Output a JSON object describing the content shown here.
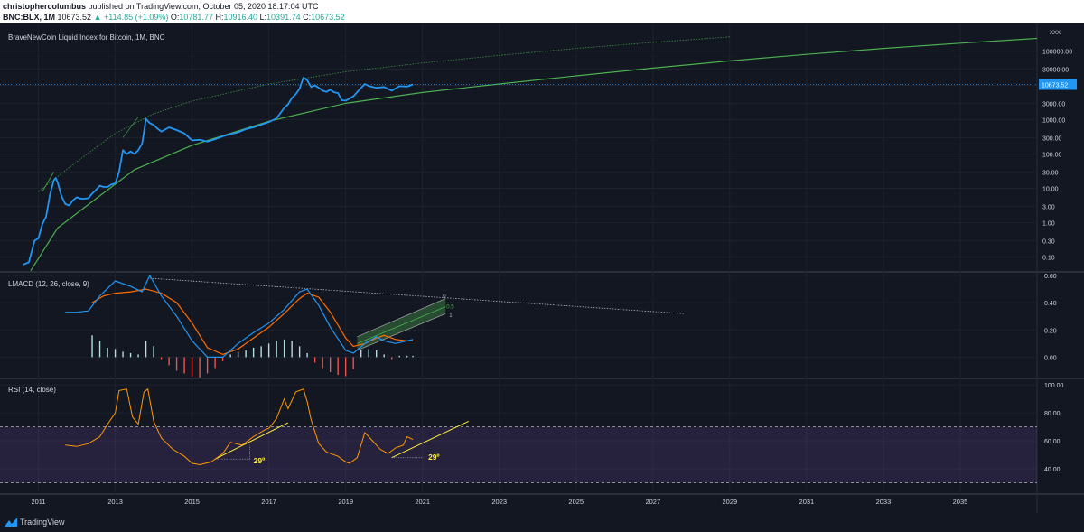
{
  "header": {
    "author": "christophercolumbus",
    "published_text": "published on TradingView.com, October 05, 2020 18:17:04 UTC",
    "symbol": "BNC:BLX, 1M",
    "price": "10673.52",
    "change": "▲ +114.85 (+1.09%)",
    "o_label": "O:",
    "o_value": "10781.77",
    "h_label": "H:",
    "h_value": "10916.40",
    "l_label": "L:",
    "l_value": "10391.74",
    "c_label": "C:",
    "c_value": "10673.52"
  },
  "footer": {
    "brand": "TradingView"
  },
  "colors": {
    "background": "#131722",
    "price_line": "#2196f3",
    "support_curve": "#4caf50",
    "macd_line": "#2196f3",
    "signal_line": "#ff6d00",
    "hist_positive": "#b2dfdb",
    "hist_negative": "#ef5350",
    "rsi_line": "#ff9800",
    "rsi_band": "#7e57c2",
    "annotation": "#ffeb3b",
    "price_label_bg": "#2196f3"
  },
  "chart_data": [
    {
      "type": "line",
      "pane": "price",
      "title": "BraveNewCoin Liquid Index for Bitcoin, 1M, BNC",
      "scale": "log",
      "ylim": [
        0.05,
        500000
      ],
      "xlim": [
        2010.0,
        2037.0
      ],
      "x_ticks": [
        "2011",
        "2013",
        "2015",
        "2017",
        "2019",
        "2021",
        "2023",
        "2025",
        "2027",
        "2029",
        "2031",
        "2033",
        "2035"
      ],
      "y_ticks": [
        "100000.00",
        "30000.00",
        "10000.00",
        "3000.00",
        "1000.00",
        "300.00",
        "100.00",
        "30.00",
        "10.00",
        "3.00",
        "1.00",
        "0.30",
        "0.10"
      ],
      "axis_top_label": "XXX",
      "last_price_label": "10673.52",
      "last_price": 10673.52,
      "series": [
        {
          "x": [
            2010.6,
            2010.75,
            2010.9,
            2011.0,
            2011.1,
            2011.2,
            2011.3,
            2011.4,
            2011.45,
            2011.5,
            2011.6,
            2011.7,
            2011.8,
            2011.9,
            2012.0,
            2012.1,
            2012.2,
            2012.3,
            2012.4,
            2012.5,
            2012.6,
            2012.7,
            2012.8,
            2012.9,
            2013.0,
            2013.1,
            2013.2,
            2013.3,
            2013.4,
            2013.5,
            2013.6,
            2013.7,
            2013.8,
            2013.9,
            2014.0,
            2014.1,
            2014.2,
            2014.4,
            2014.6,
            2014.8,
            2015.0,
            2015.2,
            2015.4,
            2015.6,
            2015.8,
            2016.0,
            2016.2,
            2016.4,
            2016.6,
            2016.8,
            2017.0,
            2017.2,
            2017.4,
            2017.5,
            2017.6,
            2017.7,
            2017.8,
            2017.9,
            2018.0,
            2018.1,
            2018.2,
            2018.3,
            2018.4,
            2018.5,
            2018.6,
            2018.7,
            2018.8,
            2018.9,
            2019.0,
            2019.2,
            2019.4,
            2019.5,
            2019.6,
            2019.8,
            2020.0,
            2020.2,
            2020.4,
            2020.6,
            2020.75
          ],
          "y": [
            0.06,
            0.07,
            0.3,
            0.35,
            0.9,
            1.5,
            6.5,
            17,
            20,
            15,
            6,
            3.5,
            3.2,
            4.5,
            5.5,
            5,
            5,
            5.2,
            7,
            9,
            12,
            11,
            11,
            13,
            14,
            30,
            130,
            100,
            120,
            100,
            130,
            200,
            1050,
            800,
            700,
            550,
            450,
            600,
            500,
            400,
            250,
            260,
            230,
            270,
            330,
            380,
            430,
            530,
            600,
            720,
            850,
            1100,
            2200,
            2800,
            4300,
            5500,
            8000,
            17000,
            14000,
            9000,
            10000,
            8500,
            7000,
            6500,
            7500,
            6300,
            6000,
            3700,
            3600,
            4800,
            8500,
            11000,
            9600,
            8500,
            9000,
            7000,
            9500,
            9200,
            10673
          ]
        },
        {
          "name": "",
          "x": [
            2010.8,
            2011.5,
            2012.5,
            2013.5,
            2015.0,
            2017.0,
            2019.0,
            2021.0,
            2023.0,
            2025.0,
            2027.0,
            2029.0,
            2031.0,
            2033.0,
            2035.0,
            2037.0
          ],
          "y": [
            0.04,
            0.7,
            5,
            35,
            180,
            900,
            3000,
            6200,
            11000,
            19000,
            32000,
            52000,
            80000,
            120000,
            170000,
            235000
          ]
        },
        {
          "name": "",
          "x": [
            2011.0,
            2012.0,
            2013.0,
            2014.0,
            2015.0,
            2017.0,
            2019.0,
            2021.0,
            2023.0,
            2025.0,
            2027.0,
            2029.0
          ],
          "y": [
            8,
            60,
            400,
            1500,
            3500,
            11000,
            25000,
            45000,
            75000,
            120000,
            180000,
            260000
          ]
        }
      ]
    },
    {
      "type": "line",
      "pane": "macd",
      "title": "LMACD (12, 26, close, 9)",
      "ylim": [
        -0.15,
        0.62
      ],
      "y_ticks": [
        "0.60",
        "0.40",
        "0.20",
        "0.00"
      ],
      "fib_labels": [
        "0",
        "0.5",
        "1"
      ],
      "series": [
        {
          "name": "",
          "x": [
            2011.7,
            2012.0,
            2012.3,
            2012.6,
            2013.0,
            2013.4,
            2013.7,
            2013.9,
            2014.2,
            2014.6,
            2015.0,
            2015.4,
            2015.8,
            2016.2,
            2016.6,
            2017.0,
            2017.4,
            2017.8,
            2018.0,
            2018.3,
            2018.6,
            2019.0,
            2019.2,
            2019.5,
            2019.8,
            2020.0,
            2020.3,
            2020.6,
            2020.75
          ],
          "y": [
            0.33,
            0.33,
            0.34,
            0.45,
            0.56,
            0.52,
            0.48,
            0.6,
            0.45,
            0.3,
            0.12,
            0.0,
            0.0,
            0.1,
            0.18,
            0.25,
            0.35,
            0.48,
            0.5,
            0.38,
            0.22,
            0.05,
            0.03,
            0.1,
            0.15,
            0.12,
            0.1,
            0.12,
            0.13
          ]
        },
        {
          "name": "",
          "x": [
            2012.4,
            2012.7,
            2013.0,
            2013.4,
            2013.8,
            2014.2,
            2014.6,
            2015.0,
            2015.4,
            2015.8,
            2016.2,
            2016.6,
            2017.0,
            2017.4,
            2017.8,
            2018.0,
            2018.3,
            2018.6,
            2019.0,
            2019.2,
            2019.5,
            2019.8,
            2020.0,
            2020.3,
            2020.6,
            2020.75
          ],
          "y": [
            0.4,
            0.45,
            0.47,
            0.48,
            0.5,
            0.47,
            0.4,
            0.25,
            0.07,
            0.02,
            0.06,
            0.14,
            0.22,
            0.32,
            0.43,
            0.47,
            0.44,
            0.33,
            0.14,
            0.08,
            0.1,
            0.14,
            0.16,
            0.13,
            0.12,
            0.12
          ]
        },
        {
          "name": "",
          "x": [
            2012.4,
            2012.6,
            2012.8,
            2013.0,
            2013.2,
            2013.4,
            2013.6,
            2013.8,
            2014.0,
            2014.2,
            2014.4,
            2014.6,
            2014.8,
            2015.0,
            2015.2,
            2015.4,
            2015.6,
            2015.8,
            2016.0,
            2016.2,
            2016.4,
            2016.6,
            2016.8,
            2017.0,
            2017.2,
            2017.4,
            2017.6,
            2017.8,
            2018.0,
            2018.2,
            2018.4,
            2018.6,
            2018.8,
            2019.0,
            2019.2,
            2019.4,
            2019.6,
            2019.8,
            2020.0,
            2020.2,
            2020.4,
            2020.6,
            2020.75
          ],
          "y": [
            0.16,
            0.12,
            0.07,
            0.06,
            0.04,
            0.03,
            0.02,
            0.12,
            0.08,
            -0.02,
            -0.06,
            -0.1,
            -0.12,
            -0.14,
            -0.15,
            -0.12,
            -0.08,
            -0.03,
            0.02,
            0.04,
            0.05,
            0.07,
            0.08,
            0.1,
            0.12,
            0.13,
            0.12,
            0.08,
            0.03,
            -0.04,
            -0.08,
            -0.11,
            -0.13,
            -0.14,
            -0.09,
            0.05,
            0.06,
            0.05,
            0.02,
            -0.02,
            0.01,
            0.01,
            0.01
          ]
        }
      ]
    },
    {
      "type": "line",
      "pane": "rsi",
      "title": "RSI (14, close)",
      "ylim": [
        22,
        104
      ],
      "y_ticks": [
        "100.00",
        "80.00",
        "60.00",
        "40.00"
      ],
      "bands": [
        30,
        70
      ],
      "angle_labels": [
        "29º",
        "29º"
      ],
      "series": [
        {
          "name": "",
          "x": [
            2011.7,
            2012.0,
            2012.3,
            2012.6,
            2012.8,
            2013.0,
            2013.1,
            2013.3,
            2013.45,
            2013.6,
            2013.75,
            2013.85,
            2014.0,
            2014.2,
            2014.5,
            2014.8,
            2015.0,
            2015.2,
            2015.5,
            2015.8,
            2016.0,
            2016.3,
            2016.6,
            2016.9,
            2017.0,
            2017.2,
            2017.4,
            2017.5,
            2017.7,
            2017.9,
            2018.0,
            2018.1,
            2018.3,
            2018.5,
            2018.8,
            2019.0,
            2019.1,
            2019.3,
            2019.5,
            2019.7,
            2019.9,
            2020.1,
            2020.3,
            2020.5,
            2020.6,
            2020.75
          ],
          "y": [
            57,
            56,
            58,
            63,
            72,
            80,
            96,
            97,
            77,
            72,
            95,
            97,
            74,
            62,
            54,
            49,
            44,
            43,
            45,
            51,
            59,
            57,
            63,
            68,
            69,
            76,
            90,
            83,
            95,
            97,
            88,
            75,
            58,
            52,
            49,
            45,
            44,
            48,
            66,
            60,
            54,
            51,
            55,
            57,
            63,
            61
          ]
        }
      ]
    }
  ]
}
